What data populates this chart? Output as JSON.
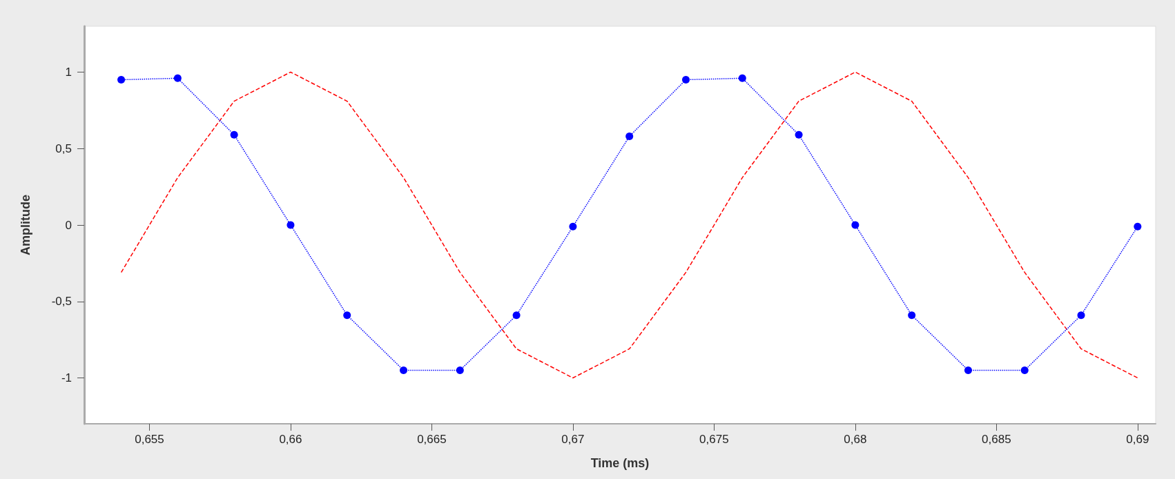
{
  "chart_data": {
    "type": "line",
    "xlabel": "Time (ms)",
    "ylabel": "Amplitude",
    "xlim": [
      0.65269,
      0.69064
    ],
    "ylim": [
      -1.3,
      1.3
    ],
    "xticks": [
      {
        "value": 0.655,
        "label": "0,655"
      },
      {
        "value": 0.66,
        "label": "0,66"
      },
      {
        "value": 0.665,
        "label": "0,665"
      },
      {
        "value": 0.67,
        "label": "0,67"
      },
      {
        "value": 0.675,
        "label": "0,675"
      },
      {
        "value": 0.68,
        "label": "0,68"
      },
      {
        "value": 0.685,
        "label": "0,685"
      },
      {
        "value": 0.69,
        "label": "0,69"
      }
    ],
    "yticks": [
      -1,
      {
        "value": -0.5,
        "label": "-0,5"
      },
      0,
      {
        "value": 0.5,
        "label": "0,5"
      },
      1
    ],
    "series": [
      {
        "color": "#ff0000",
        "line_style": "dashed",
        "marker": "none",
        "x": [
          0.654,
          0.656,
          0.658,
          0.66,
          0.662,
          0.664,
          0.666,
          0.668,
          0.67,
          0.672,
          0.674,
          0.676,
          0.678,
          0.68,
          0.682,
          0.684,
          0.686,
          0.688,
          0.69
        ],
        "values": [
          -0.31,
          0.31,
          0.81,
          1,
          0.81,
          0.31,
          -0.31,
          -0.81,
          -1,
          -0.81,
          -0.31,
          0.31,
          0.81,
          1,
          0.81,
          0.31,
          -0.31,
          -0.81,
          -1
        ]
      },
      {
        "color": "#0000ff",
        "line_style": "dotted",
        "marker": "circle",
        "x": [
          0.654,
          0.656,
          0.658,
          0.66,
          0.662,
          0.664,
          0.666,
          0.668,
          0.67,
          0.672,
          0.674,
          0.676,
          0.678,
          0.68,
          0.682,
          0.684,
          0.686,
          0.688,
          0.69
        ],
        "values": [
          0.95,
          0.96,
          0.59,
          0,
          -0.59,
          -0.95,
          -0.95,
          -0.59,
          -0.01,
          0.58,
          0.95,
          0.96,
          0.59,
          0,
          -0.59,
          -0.95,
          -0.95,
          -0.59,
          -0.01
        ]
      }
    ]
  }
}
